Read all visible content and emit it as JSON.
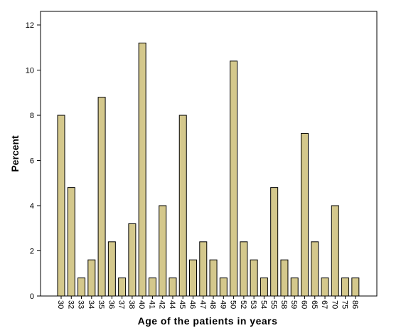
{
  "chart_data": {
    "type": "bar",
    "title": "",
    "xlabel": "Age of the patients in years",
    "ylabel": "Percent",
    "ylim": [
      0,
      12.6
    ],
    "yticks": [
      0,
      2,
      4,
      6,
      8,
      10,
      12
    ],
    "grid": false,
    "categories": [
      "30",
      "32",
      "33",
      "34",
      "35",
      "36",
      "37",
      "38",
      "40",
      "41",
      "42",
      "44",
      "45",
      "46",
      "47",
      "48",
      "49",
      "50",
      "52",
      "53",
      "54",
      "55",
      "58",
      "59",
      "60",
      "65",
      "67",
      "70",
      "75",
      "86"
    ],
    "values": [
      8.0,
      4.8,
      0.8,
      1.6,
      8.8,
      2.4,
      0.8,
      3.2,
      11.2,
      0.8,
      4.0,
      0.8,
      8.0,
      1.6,
      2.4,
      1.6,
      0.8,
      10.4,
      2.4,
      1.6,
      0.8,
      4.8,
      1.6,
      0.8,
      7.2,
      2.4,
      0.8,
      4.0,
      0.8,
      0.8
    ],
    "colors": {
      "bar_fill": "#d4c88c",
      "bar_stroke": "#000000",
      "plot_background": "#ffffff",
      "frame": "#000000"
    }
  }
}
